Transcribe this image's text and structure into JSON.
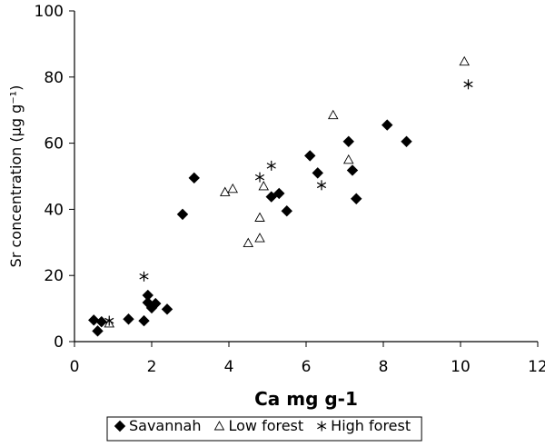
{
  "chart_data": {
    "type": "scatter",
    "xlabel": "Ca mg g-1",
    "ylabel": "Sr concentration (µg g⁻¹)",
    "xlim": [
      0,
      12
    ],
    "ylim": [
      0,
      100
    ],
    "xticks": [
      0,
      2,
      4,
      6,
      8,
      10,
      12
    ],
    "yticks": [
      0,
      20,
      40,
      60,
      80,
      100
    ],
    "grid": false,
    "legend_position": "bottom",
    "series": [
      {
        "name": "Savannah",
        "marker": "diamond",
        "color": "#000000",
        "points": [
          [
            0.5,
            6.5
          ],
          [
            0.6,
            3.2
          ],
          [
            0.7,
            6.0
          ],
          [
            1.4,
            6.8
          ],
          [
            1.8,
            6.3
          ],
          [
            1.9,
            14.0
          ],
          [
            1.9,
            11.8
          ],
          [
            2.0,
            10.2
          ],
          [
            2.1,
            11.5
          ],
          [
            2.4,
            9.8
          ],
          [
            2.8,
            38.5
          ],
          [
            3.1,
            49.5
          ],
          [
            5.1,
            43.8
          ],
          [
            5.3,
            44.8
          ],
          [
            5.5,
            39.5
          ],
          [
            6.1,
            56.2
          ],
          [
            6.3,
            51.0
          ],
          [
            7.1,
            60.5
          ],
          [
            7.2,
            51.8
          ],
          [
            7.3,
            43.2
          ],
          [
            8.1,
            65.5
          ],
          [
            8.6,
            60.5
          ]
        ]
      },
      {
        "name": "Low forest",
        "marker": "triangle",
        "color": "#000000",
        "points": [
          [
            0.9,
            5.5
          ],
          [
            3.9,
            45.2
          ],
          [
            4.1,
            46.2
          ],
          [
            4.5,
            29.8
          ],
          [
            4.8,
            37.5
          ],
          [
            4.8,
            31.3
          ],
          [
            4.9,
            47.0
          ],
          [
            6.7,
            68.5
          ],
          [
            7.1,
            55.0
          ],
          [
            10.1,
            84.7
          ]
        ]
      },
      {
        "name": "High forest",
        "marker": "asterisk",
        "color": "#000000",
        "points": [
          [
            0.9,
            6.3
          ],
          [
            1.8,
            19.7
          ],
          [
            4.8,
            49.7
          ],
          [
            5.1,
            53.2
          ],
          [
            6.4,
            47.3
          ],
          [
            10.2,
            77.8
          ]
        ]
      }
    ]
  }
}
